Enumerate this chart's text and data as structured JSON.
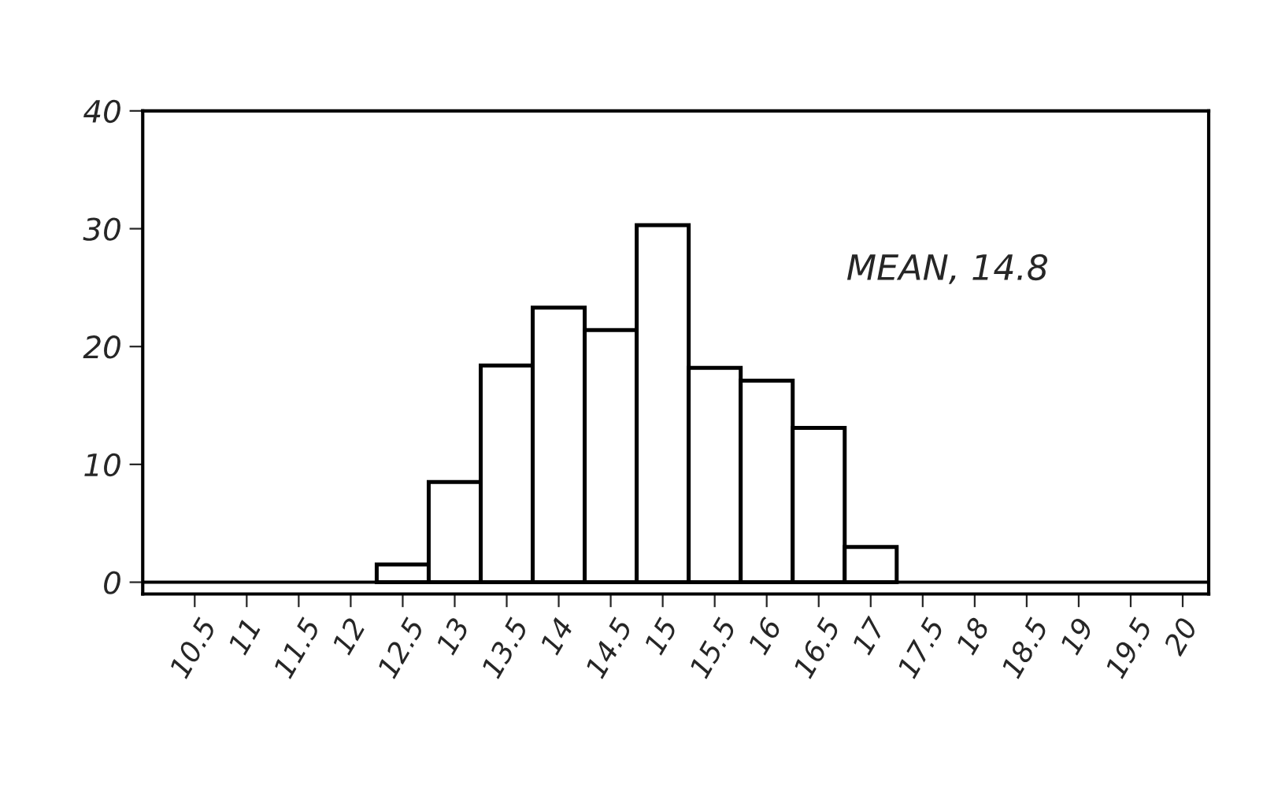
{
  "chart_data": {
    "type": "histogram",
    "bins": [
      12.25,
      12.75,
      13.25,
      13.75,
      14.25,
      14.75,
      15.25,
      15.75,
      16.25,
      16.75,
      17.25
    ],
    "values": [
      1.5,
      8.5,
      18.4,
      23.3,
      21.4,
      30.3,
      18.2,
      17.1,
      13.1,
      3.0
    ],
    "xlim": [
      10,
      20.25
    ],
    "ylim": [
      -1,
      40
    ],
    "xticks": [
      10.5,
      11,
      11.5,
      12,
      12.5,
      13,
      13.5,
      14,
      14.5,
      15,
      15.5,
      16,
      16.5,
      17,
      17.5,
      18,
      18.5,
      19,
      19.5,
      20
    ],
    "yticks": [
      0,
      10,
      20,
      30,
      40
    ],
    "annotations": [
      "MEAN, 14.8"
    ],
    "ref_lines": [
      {
        "axis": "y",
        "value": 0
      }
    ],
    "color": "#ffffff",
    "grid": false
  }
}
